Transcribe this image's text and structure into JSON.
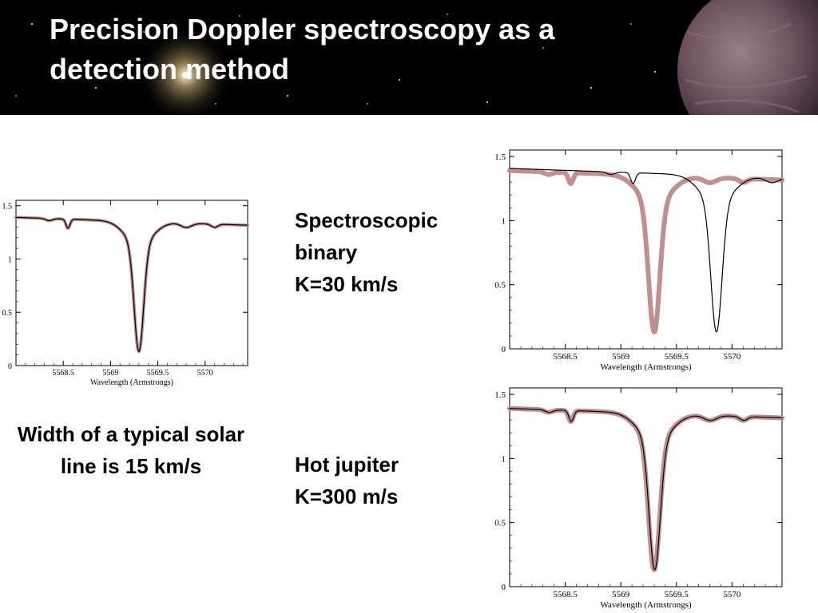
{
  "slide": {
    "title_line1": "Precision Doppler spectroscopy as a",
    "title_line2": "detection method"
  },
  "labels": {
    "spectroscopic_binary": {
      "line1": "Spectroscopic",
      "line2": "binary",
      "line3": "K=30 km/s"
    },
    "hot_jupiter": {
      "line1": "Hot jupiter",
      "line2": "K=300 m/s"
    },
    "line_width": {
      "text": "Width of a typical solar line is 15 km/s"
    }
  },
  "colors": {
    "header_bg": "#000000",
    "title_text": "#ffffff",
    "reference_spectrum": "#c09090",
    "shifted_spectrum": "#000000"
  },
  "chart_data": [
    {
      "type": "line",
      "id": "single",
      "xlabel": "Wavelength (Armstrongs)",
      "ylabel": "",
      "xlim": [
        5568.0,
        5570.45
      ],
      "ylim": [
        0,
        1.55
      ],
      "x_ticks": [
        5568.5,
        5569,
        5569.5,
        5570
      ],
      "x_tick_labels": [
        "5568.5",
        "5569",
        "5569.5",
        "5570"
      ],
      "y_ticks": [
        0,
        0.5,
        1,
        1.5
      ],
      "y_tick_labels": [
        "0",
        "0.5",
        "1",
        "1.5"
      ],
      "series": [
        {
          "style": "reference",
          "shift": 0
        },
        {
          "style": "shifted",
          "shift": 0
        }
      ]
    },
    {
      "type": "line",
      "id": "binary",
      "xlabel": "Wavelength (Armstrongs)",
      "ylabel": "",
      "xlim": [
        5568.0,
        5570.45
      ],
      "ylim": [
        0,
        1.55
      ],
      "x_ticks": [
        5568.5,
        5569,
        5569.5,
        5570
      ],
      "x_tick_labels": [
        "5568.5",
        "5569",
        "5569.5",
        "5570"
      ],
      "y_ticks": [
        0,
        0.5,
        1,
        1.5
      ],
      "y_tick_labels": [
        "0",
        "0.5",
        "1",
        "1.5"
      ],
      "series": [
        {
          "style": "reference",
          "shift": 0
        },
        {
          "style": "shifted",
          "shift": 0.56
        }
      ]
    },
    {
      "type": "line",
      "id": "hotjupiter",
      "xlabel": "Wavelength (Armstrongs)",
      "ylabel": "",
      "xlim": [
        5568.0,
        5570.45
      ],
      "ylim": [
        0,
        1.55
      ],
      "x_ticks": [
        5568.5,
        5569,
        5569.5,
        5570
      ],
      "x_tick_labels": [
        "5568.5",
        "5569",
        "5569.5",
        "5570"
      ],
      "y_ticks": [
        0,
        0.5,
        1,
        1.5
      ],
      "y_tick_labels": [
        "0",
        "0.5",
        "1",
        "1.5"
      ],
      "series": [
        {
          "style": "reference",
          "shift": 0
        },
        {
          "style": "shifted",
          "shift": 0.005
        }
      ]
    }
  ]
}
